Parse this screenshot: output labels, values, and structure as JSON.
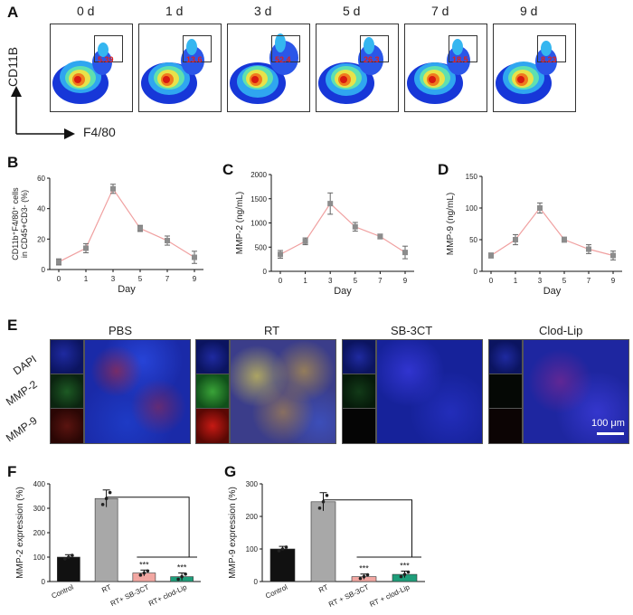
{
  "panels": {
    "A": "A",
    "B": "B",
    "C": "C",
    "D": "D",
    "E": "E",
    "F": "F",
    "G": "G"
  },
  "flow": {
    "y_label": "CD11B",
    "x_label": "F4/80",
    "plots": [
      {
        "day": "0 d",
        "gate": "5.39"
      },
      {
        "day": "1 d",
        "gate": "13.6"
      },
      {
        "day": "3 d",
        "gate": "52.4"
      },
      {
        "day": "5 d",
        "gate": "26.3"
      },
      {
        "day": "7 d",
        "gate": "18.5"
      },
      {
        "day": "9 d",
        "gate": "8.23"
      }
    ]
  },
  "imaging": {
    "groups": [
      "PBS",
      "RT",
      "SB-3CT",
      "Clod-Lip"
    ],
    "channels": [
      "DAPI",
      "MMP-2",
      "MMP-9"
    ],
    "scale": "100 μm"
  },
  "chart_data": [
    {
      "id": "B",
      "type": "line",
      "x": [
        0,
        1,
        3,
        5,
        7,
        9
      ],
      "x_ticks": [
        "0",
        "1",
        "3",
        "5",
        "7",
        "9"
      ],
      "values": [
        5,
        14,
        53,
        27,
        19,
        8
      ],
      "errors": [
        2,
        3,
        3,
        2,
        3,
        4
      ],
      "xlabel": "Day",
      "ylabel_line1": "CD11b⁺F4/80⁺ cells",
      "ylabel_line2": "in CD45+CD3- (%)",
      "ylim": [
        0,
        60
      ],
      "yticks": [
        "0",
        "20",
        "40",
        "60"
      ],
      "yticks_vals": [
        0,
        20,
        40,
        60
      ]
    },
    {
      "id": "C",
      "type": "line",
      "x": [
        0,
        1,
        3,
        5,
        7,
        9
      ],
      "x_ticks": [
        "0",
        "1",
        "3",
        "5",
        "7",
        "9"
      ],
      "values": [
        350,
        620,
        1400,
        920,
        720,
        390
      ],
      "errors": [
        80,
        70,
        220,
        90,
        50,
        130
      ],
      "xlabel": "Day",
      "ylabel_line1": "MMP-2 (ng/mL)",
      "ylim": [
        0,
        2000
      ],
      "yticks": [
        "0",
        "500",
        "1000",
        "1500",
        "2000"
      ],
      "yticks_vals": [
        0,
        500,
        1000,
        1500,
        2000
      ]
    },
    {
      "id": "D",
      "type": "line",
      "x": [
        0,
        1,
        3,
        5,
        7,
        9
      ],
      "x_ticks": [
        "0",
        "1",
        "3",
        "5",
        "7",
        "9"
      ],
      "values": [
        25,
        50,
        100,
        50,
        35,
        25
      ],
      "errors": [
        4,
        8,
        8,
        4,
        7,
        7
      ],
      "xlabel": "Day",
      "ylabel_line1": "MMP-9 (ng/mL)",
      "ylim": [
        0,
        150
      ],
      "yticks": [
        "0",
        "50",
        "100",
        "150"
      ],
      "yticks_vals": [
        0,
        50,
        100,
        150
      ]
    },
    {
      "id": "F",
      "type": "bar",
      "categories": [
        "Control",
        "RT",
        "RT+ SB-3CT",
        "RT+ clod-Lip"
      ],
      "values": [
        100,
        340,
        35,
        20
      ],
      "errors": [
        10,
        35,
        12,
        15
      ],
      "colors": [
        "#111111",
        "#a8a8a8",
        "#f2a7a2",
        "#1e9e7a"
      ],
      "sig": [
        "",
        "",
        "***",
        "***"
      ],
      "ylabel": "MMP-2 expression (%)",
      "ylim": [
        0,
        400
      ],
      "yticks": [
        "0",
        "100",
        "200",
        "300",
        "400"
      ],
      "yticks_vals": [
        0,
        100,
        200,
        300,
        400
      ]
    },
    {
      "id": "G",
      "type": "bar",
      "categories": [
        "Control",
        "RT",
        "RT + SB-3CT",
        "RT + clod-Lip"
      ],
      "values": [
        100,
        245,
        15,
        22
      ],
      "errors": [
        8,
        28,
        8,
        10
      ],
      "colors": [
        "#111111",
        "#a8a8a8",
        "#f2a7a2",
        "#1e9e7a"
      ],
      "sig": [
        "",
        "",
        "***",
        "***"
      ],
      "ylabel": "MMP-9 expression (%)",
      "ylim": [
        0,
        300
      ],
      "yticks": [
        "0",
        "100",
        "200",
        "300"
      ],
      "yticks_vals": [
        0,
        100,
        200,
        300
      ]
    }
  ]
}
